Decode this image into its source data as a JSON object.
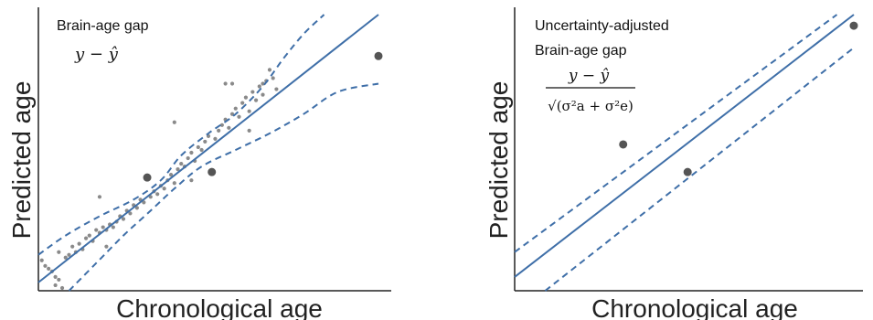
{
  "chart_data": [
    {
      "type": "scatter",
      "panel": "left",
      "title": "",
      "xlabel": "Chronological age",
      "ylabel": "Predicted age",
      "xlim": [
        0,
        100
      ],
      "ylim": [
        0,
        100
      ],
      "ticks": "none",
      "grid": false,
      "annotation": {
        "line1": "Brain-age gap",
        "formula": "y − ŷ"
      },
      "colors": {
        "points": "#8a8a8a",
        "highlight": "#555555",
        "line": "#3f6fa8"
      },
      "regression_line": {
        "x": [
          0,
          100
        ],
        "y": [
          3,
          100
        ]
      },
      "uncertainty_band": {
        "upper": {
          "x": [
            0,
            8,
            18,
            28,
            36,
            42,
            50,
            58,
            66,
            72,
            78,
            84
          ],
          "y": [
            13,
            20,
            27,
            33,
            40,
            49,
            57,
            64,
            74,
            84,
            93,
            100
          ]
        },
        "lower": {
          "x": [
            9,
            17,
            25,
            33,
            40,
            48,
            58,
            68,
            78,
            88,
            100
          ],
          "y": [
            0,
            10,
            20,
            29,
            37,
            45,
            51,
            57,
            64,
            72,
            75
          ]
        }
      },
      "highlighted_points": [
        {
          "x": 32,
          "y": 41
        },
        {
          "x": 51,
          "y": 43
        },
        {
          "x": 100,
          "y": 85
        }
      ],
      "points": [
        {
          "x": 1,
          "y": 11
        },
        {
          "x": 2,
          "y": 9
        },
        {
          "x": 3,
          "y": 8
        },
        {
          "x": 4,
          "y": 7
        },
        {
          "x": 5,
          "y": 5
        },
        {
          "x": 5,
          "y": 2
        },
        {
          "x": 6,
          "y": 4
        },
        {
          "x": 7,
          "y": 1
        },
        {
          "x": 6,
          "y": 14
        },
        {
          "x": 8,
          "y": 12
        },
        {
          "x": 9,
          "y": 13
        },
        {
          "x": 10,
          "y": 16
        },
        {
          "x": 11,
          "y": 14
        },
        {
          "x": 12,
          "y": 17
        },
        {
          "x": 13,
          "y": 15
        },
        {
          "x": 14,
          "y": 19
        },
        {
          "x": 15,
          "y": 20
        },
        {
          "x": 16,
          "y": 18
        },
        {
          "x": 17,
          "y": 22
        },
        {
          "x": 18,
          "y": 21
        },
        {
          "x": 19,
          "y": 23
        },
        {
          "x": 20,
          "y": 22
        },
        {
          "x": 21,
          "y": 24
        },
        {
          "x": 22,
          "y": 23
        },
        {
          "x": 23,
          "y": 25
        },
        {
          "x": 24,
          "y": 27
        },
        {
          "x": 25,
          "y": 26
        },
        {
          "x": 26,
          "y": 29
        },
        {
          "x": 27,
          "y": 28
        },
        {
          "x": 28,
          "y": 31
        },
        {
          "x": 29,
          "y": 30
        },
        {
          "x": 30,
          "y": 33
        },
        {
          "x": 31,
          "y": 32
        },
        {
          "x": 33,
          "y": 34
        },
        {
          "x": 34,
          "y": 36
        },
        {
          "x": 35,
          "y": 35
        },
        {
          "x": 36,
          "y": 38
        },
        {
          "x": 37,
          "y": 37
        },
        {
          "x": 38,
          "y": 40
        },
        {
          "x": 39,
          "y": 42
        },
        {
          "x": 40,
          "y": 39
        },
        {
          "x": 41,
          "y": 44
        },
        {
          "x": 42,
          "y": 46
        },
        {
          "x": 43,
          "y": 45
        },
        {
          "x": 44,
          "y": 48
        },
        {
          "x": 45,
          "y": 50
        },
        {
          "x": 46,
          "y": 47
        },
        {
          "x": 47,
          "y": 52
        },
        {
          "x": 48,
          "y": 51
        },
        {
          "x": 49,
          "y": 54
        },
        {
          "x": 50,
          "y": 56
        },
        {
          "x": 52,
          "y": 55
        },
        {
          "x": 53,
          "y": 58
        },
        {
          "x": 54,
          "y": 60
        },
        {
          "x": 55,
          "y": 62
        },
        {
          "x": 56,
          "y": 59
        },
        {
          "x": 57,
          "y": 64
        },
        {
          "x": 58,
          "y": 66
        },
        {
          "x": 59,
          "y": 63
        },
        {
          "x": 60,
          "y": 68
        },
        {
          "x": 61,
          "y": 70
        },
        {
          "x": 62,
          "y": 65
        },
        {
          "x": 63,
          "y": 72
        },
        {
          "x": 64,
          "y": 69
        },
        {
          "x": 65,
          "y": 74
        },
        {
          "x": 66,
          "y": 71
        },
        {
          "x": 67,
          "y": 76
        },
        {
          "x": 68,
          "y": 80
        },
        {
          "x": 69,
          "y": 77
        },
        {
          "x": 70,
          "y": 73
        },
        {
          "x": 45,
          "y": 40
        },
        {
          "x": 20,
          "y": 16
        },
        {
          "x": 18,
          "y": 34
        },
        {
          "x": 40,
          "y": 61
        },
        {
          "x": 55,
          "y": 75
        },
        {
          "x": 57,
          "y": 75
        },
        {
          "x": 66,
          "y": 75
        },
        {
          "x": 62,
          "y": 58
        }
      ]
    },
    {
      "type": "line",
      "panel": "right",
      "title": "",
      "xlabel": "Chronological age",
      "ylabel": "Predicted age",
      "xlim": [
        0,
        100
      ],
      "ylim": [
        0,
        100
      ],
      "ticks": "none",
      "grid": false,
      "annotation": {
        "line1": "Uncertainty-adjusted",
        "line2": "Brain-age gap",
        "numerator": "y − ŷ",
        "denominator": "√(σ²a + σ²e)"
      },
      "colors": {
        "points": "#555555",
        "line": "#3f6fa8"
      },
      "identity_line": {
        "x": [
          0,
          100
        ],
        "y": [
          5,
          100
        ]
      },
      "interval_upper": {
        "x": [
          0,
          95
        ],
        "y": [
          14,
          100
        ]
      },
      "interval_lower": {
        "x": [
          9,
          100
        ],
        "y": [
          0,
          88
        ]
      },
      "points": [
        {
          "x": 32,
          "y": 53
        },
        {
          "x": 51,
          "y": 43
        },
        {
          "x": 100,
          "y": 96
        }
      ]
    }
  ]
}
